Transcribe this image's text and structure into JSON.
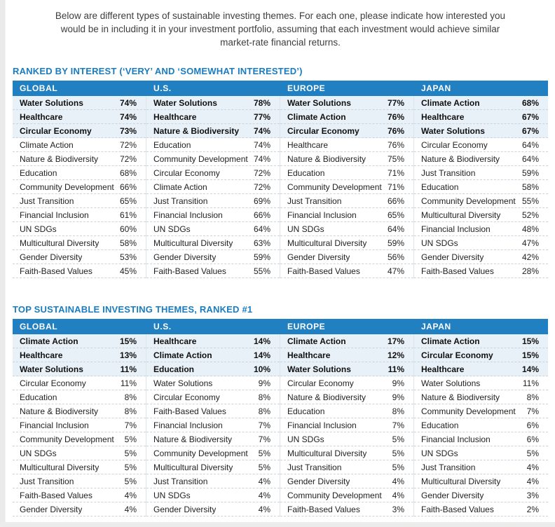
{
  "intro": "Below are different types of sustainable investing themes. For each one, please indicate how interested you would be in including it in your investment portfolio, assuming that each investment would achieve similar market-rate financial returns.",
  "colors": {
    "header_bar": "#2080c2",
    "section_title": "#1a7cc0",
    "top_row_highlight": "#e9f1f8"
  },
  "tables": [
    {
      "title": "RANKED BY INTEREST (‘VERY’ AND ‘SOMEWHAT INTERESTED’)",
      "regions": [
        {
          "name": "GLOBAL",
          "rows": [
            {
              "theme": "Water Solutions",
              "value": "74%",
              "top": true
            },
            {
              "theme": "Healthcare",
              "value": "74%",
              "top": true
            },
            {
              "theme": "Circular Economy",
              "value": "73%",
              "top": true
            },
            {
              "theme": "Climate Action",
              "value": "72%",
              "top": false
            },
            {
              "theme": "Nature & Biodiversity",
              "value": "72%",
              "top": false
            },
            {
              "theme": "Education",
              "value": "68%",
              "top": false
            },
            {
              "theme": "Community Development",
              "value": "66%",
              "top": false
            },
            {
              "theme": "Just Transition",
              "value": "65%",
              "top": false
            },
            {
              "theme": "Financial Inclusion",
              "value": "61%",
              "top": false
            },
            {
              "theme": "UN SDGs",
              "value": "60%",
              "top": false
            },
            {
              "theme": "Multicultural Diversity",
              "value": "58%",
              "top": false
            },
            {
              "theme": "Gender Diversity",
              "value": "53%",
              "top": false
            },
            {
              "theme": "Faith-Based Values",
              "value": "45%",
              "top": false
            }
          ]
        },
        {
          "name": "U.S.",
          "rows": [
            {
              "theme": "Water Solutions",
              "value": "78%",
              "top": true
            },
            {
              "theme": "Healthcare",
              "value": "77%",
              "top": true
            },
            {
              "theme": "Nature & Biodiversity",
              "value": "74%",
              "top": true
            },
            {
              "theme": "Education",
              "value": "74%",
              "top": false
            },
            {
              "theme": "Community Development",
              "value": "74%",
              "top": false
            },
            {
              "theme": "Circular Economy",
              "value": "72%",
              "top": false
            },
            {
              "theme": "Climate Action",
              "value": "72%",
              "top": false
            },
            {
              "theme": "Just Transition",
              "value": "69%",
              "top": false
            },
            {
              "theme": "Financial Inclusion",
              "value": "66%",
              "top": false
            },
            {
              "theme": "UN SDGs",
              "value": "64%",
              "top": false
            },
            {
              "theme": "Multicultural Diversity",
              "value": "63%",
              "top": false
            },
            {
              "theme": "Gender Diversity",
              "value": "59%",
              "top": false
            },
            {
              "theme": "Faith-Based Values",
              "value": "55%",
              "top": false
            }
          ]
        },
        {
          "name": "EUROPE",
          "rows": [
            {
              "theme": "Water Solutions",
              "value": "77%",
              "top": true
            },
            {
              "theme": "Climate Action",
              "value": "76%",
              "top": true
            },
            {
              "theme": "Circular Economy",
              "value": "76%",
              "top": true
            },
            {
              "theme": "Healthcare",
              "value": "76%",
              "top": false
            },
            {
              "theme": "Nature & Biodiversity",
              "value": "75%",
              "top": false
            },
            {
              "theme": "Education",
              "value": "71%",
              "top": false
            },
            {
              "theme": "Community Development",
              "value": "71%",
              "top": false
            },
            {
              "theme": "Just Transition",
              "value": "66%",
              "top": false
            },
            {
              "theme": "Financial Inclusion",
              "value": "65%",
              "top": false
            },
            {
              "theme": "UN SDGs",
              "value": "64%",
              "top": false
            },
            {
              "theme": "Multicultural Diversity",
              "value": "59%",
              "top": false
            },
            {
              "theme": "Gender Diversity",
              "value": "56%",
              "top": false
            },
            {
              "theme": "Faith-Based Values",
              "value": "47%",
              "top": false
            }
          ]
        },
        {
          "name": "JAPAN",
          "rows": [
            {
              "theme": "Climate Action",
              "value": "68%",
              "top": true
            },
            {
              "theme": "Healthcare",
              "value": "67%",
              "top": true
            },
            {
              "theme": "Water Solutions",
              "value": "67%",
              "top": true
            },
            {
              "theme": "Circular Economy",
              "value": "64%",
              "top": false
            },
            {
              "theme": "Nature & Biodiversity",
              "value": "64%",
              "top": false
            },
            {
              "theme": "Just Transition",
              "value": "59%",
              "top": false
            },
            {
              "theme": "Education",
              "value": "58%",
              "top": false
            },
            {
              "theme": "Community Development",
              "value": "55%",
              "top": false
            },
            {
              "theme": "Multicultural Diversity",
              "value": "52%",
              "top": false
            },
            {
              "theme": "Financial Inclusion",
              "value": "48%",
              "top": false
            },
            {
              "theme": "UN SDGs",
              "value": "47%",
              "top": false
            },
            {
              "theme": "Gender Diversity",
              "value": "42%",
              "top": false
            },
            {
              "theme": "Faith-Based Values",
              "value": "28%",
              "top": false
            }
          ]
        }
      ]
    },
    {
      "title": "TOP SUSTAINABLE INVESTING THEMES, RANKED #1",
      "regions": [
        {
          "name": "GLOBAL",
          "rows": [
            {
              "theme": "Climate Action",
              "value": "15%",
              "top": true
            },
            {
              "theme": "Healthcare",
              "value": "13%",
              "top": true
            },
            {
              "theme": "Water Solutions",
              "value": "11%",
              "top": true
            },
            {
              "theme": "Circular Economy",
              "value": "11%",
              "top": false
            },
            {
              "theme": "Education",
              "value": "8%",
              "top": false
            },
            {
              "theme": "Nature & Biodiversity",
              "value": "8%",
              "top": false
            },
            {
              "theme": "Financial Inclusion",
              "value": "7%",
              "top": false
            },
            {
              "theme": "Community Development",
              "value": "5%",
              "top": false
            },
            {
              "theme": "UN SDGs",
              "value": "5%",
              "top": false
            },
            {
              "theme": "Multicultural Diversity",
              "value": "5%",
              "top": false
            },
            {
              "theme": "Just Transition",
              "value": "5%",
              "top": false
            },
            {
              "theme": "Faith-Based Values",
              "value": "4%",
              "top": false
            },
            {
              "theme": "Gender Diversity",
              "value": "4%",
              "top": false
            }
          ]
        },
        {
          "name": "U.S.",
          "rows": [
            {
              "theme": "Healthcare",
              "value": "14%",
              "top": true
            },
            {
              "theme": "Climate Action",
              "value": "14%",
              "top": true
            },
            {
              "theme": "Education",
              "value": "10%",
              "top": true
            },
            {
              "theme": "Water Solutions",
              "value": "9%",
              "top": false
            },
            {
              "theme": "Circular Economy",
              "value": "8%",
              "top": false
            },
            {
              "theme": "Faith-Based Values",
              "value": "8%",
              "top": false
            },
            {
              "theme": "Financial Inclusion",
              "value": "7%",
              "top": false
            },
            {
              "theme": "Nature & Biodiversity",
              "value": "7%",
              "top": false
            },
            {
              "theme": "Community Development",
              "value": "5%",
              "top": false
            },
            {
              "theme": "Multicultural Diversity",
              "value": "5%",
              "top": false
            },
            {
              "theme": "Just Transition",
              "value": "4%",
              "top": false
            },
            {
              "theme": "UN SDGs",
              "value": "4%",
              "top": false
            },
            {
              "theme": "Gender Diversity",
              "value": "4%",
              "top": false
            }
          ]
        },
        {
          "name": "EUROPE",
          "rows": [
            {
              "theme": "Climate Action",
              "value": "17%",
              "top": true
            },
            {
              "theme": "Healthcare",
              "value": "12%",
              "top": true
            },
            {
              "theme": "Water Solutions",
              "value": "11%",
              "top": true
            },
            {
              "theme": "Circular Economy",
              "value": "9%",
              "top": false
            },
            {
              "theme": "Nature & Biodiversity",
              "value": "9%",
              "top": false
            },
            {
              "theme": "Education",
              "value": "8%",
              "top": false
            },
            {
              "theme": "Financial Inclusion",
              "value": "7%",
              "top": false
            },
            {
              "theme": "UN SDGs",
              "value": "5%",
              "top": false
            },
            {
              "theme": "Multicultural Diversity",
              "value": "5%",
              "top": false
            },
            {
              "theme": "Just Transition",
              "value": "5%",
              "top": false
            },
            {
              "theme": "Gender Diversity",
              "value": "4%",
              "top": false
            },
            {
              "theme": "Community Development",
              "value": "4%",
              "top": false
            },
            {
              "theme": "Faith-Based Values",
              "value": "3%",
              "top": false
            }
          ]
        },
        {
          "name": "JAPAN",
          "rows": [
            {
              "theme": "Climate Action",
              "value": "15%",
              "top": true
            },
            {
              "theme": "Circular Economy",
              "value": "15%",
              "top": true
            },
            {
              "theme": "Healthcare",
              "value": "14%",
              "top": true
            },
            {
              "theme": "Water Solutions",
              "value": "11%",
              "top": false
            },
            {
              "theme": "Nature & Biodiversity",
              "value": "8%",
              "top": false
            },
            {
              "theme": "Community Development",
              "value": "7%",
              "top": false
            },
            {
              "theme": "Education",
              "value": "6%",
              "top": false
            },
            {
              "theme": "Financial Inclusion",
              "value": "6%",
              "top": false
            },
            {
              "theme": "UN SDGs",
              "value": "5%",
              "top": false
            },
            {
              "theme": "Just Transition",
              "value": "4%",
              "top": false
            },
            {
              "theme": "Multicultural Diversity",
              "value": "4%",
              "top": false
            },
            {
              "theme": "Gender Diversity",
              "value": "3%",
              "top": false
            },
            {
              "theme": "Faith-Based Values",
              "value": "2%",
              "top": false
            }
          ]
        }
      ]
    }
  ]
}
